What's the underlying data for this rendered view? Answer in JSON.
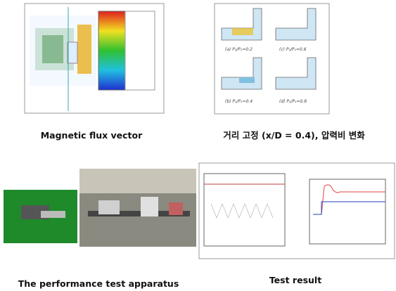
{
  "panels": [
    {
      "caption": "Magnetic flux vector"
    },
    {
      "caption": "거리 고정 (x/D = 0.4), 압력비 변화",
      "labels": [
        "(a) P₂/P₁=0.2",
        "(c) P₂/P₁=0.6",
        "(b) P₂/P₁=0.4",
        "(d) P₂/P₁=0.8"
      ]
    },
    {
      "caption": "The performance test apparatus"
    },
    {
      "caption": "Test result"
    }
  ]
}
